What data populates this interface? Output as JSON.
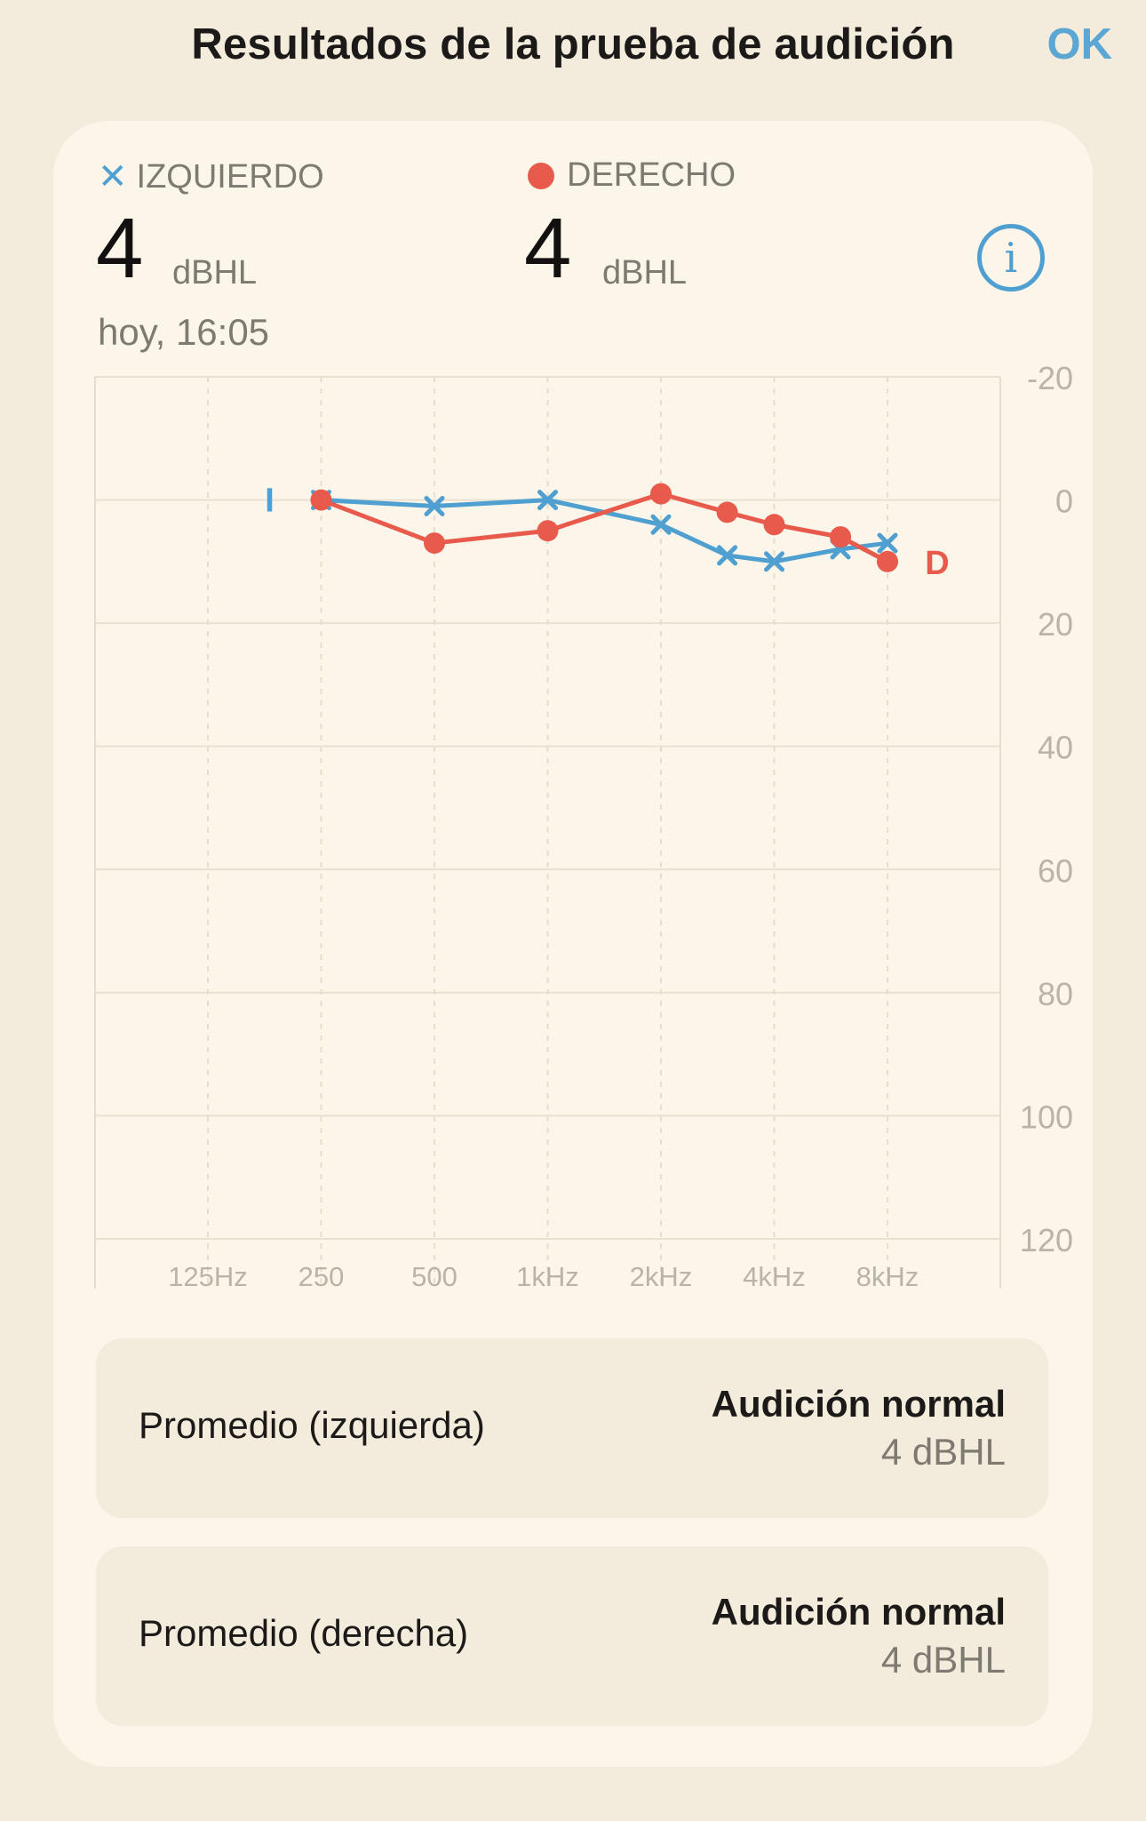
{
  "header": {
    "title": "Resultados de la prueba de audición",
    "ok_label": "OK"
  },
  "legend": {
    "left": {
      "label": "IZQUIERDO",
      "value": "4",
      "unit": "dBHL",
      "marker": "x-icon",
      "color": "#4f9fd0"
    },
    "right": {
      "label": "DERECHO",
      "value": "4",
      "unit": "dBHL",
      "marker": "dot-icon",
      "color": "#e85a4c"
    },
    "date": "hoy, 16:05",
    "info_icon": "info-icon"
  },
  "chart_data": {
    "type": "line",
    "x_tick_labels": [
      "125Hz",
      "250",
      "500",
      "1kHz",
      "2kHz",
      "4kHz",
      "8kHz"
    ],
    "y_tick_labels": [
      "-20",
      "0",
      "20",
      "40",
      "60",
      "80",
      "100",
      "120"
    ],
    "ylim": [
      -20,
      120
    ],
    "y_inverted": true,
    "grid": true,
    "series": [
      {
        "marker_label": "I",
        "marker": "x",
        "color": "#4f9fd0",
        "points": [
          {
            "freq": 250,
            "db": 0
          },
          {
            "freq": 500,
            "db": 1
          },
          {
            "freq": 1000,
            "db": 0
          },
          {
            "freq": 2000,
            "db": 4
          },
          {
            "freq": 3000,
            "db": 9
          },
          {
            "freq": 4000,
            "db": 10
          },
          {
            "freq": 6000,
            "db": 8
          },
          {
            "freq": 8000,
            "db": 7
          }
        ]
      },
      {
        "marker_label": "D",
        "marker": "dot",
        "color": "#e85a4c",
        "points": [
          {
            "freq": 250,
            "db": 0
          },
          {
            "freq": 500,
            "db": 7
          },
          {
            "freq": 1000,
            "db": 5
          },
          {
            "freq": 2000,
            "db": -1
          },
          {
            "freq": 3000,
            "db": 2
          },
          {
            "freq": 4000,
            "db": 4
          },
          {
            "freq": 6000,
            "db": 6
          },
          {
            "freq": 8000,
            "db": 10
          }
        ]
      }
    ]
  },
  "averages": [
    {
      "label": "Promedio (izquierda)",
      "status": "Audición normal",
      "value": "4 dBHL"
    },
    {
      "label": "Promedio (derecha)",
      "status": "Audición normal",
      "value": "4 dBHL"
    }
  ]
}
